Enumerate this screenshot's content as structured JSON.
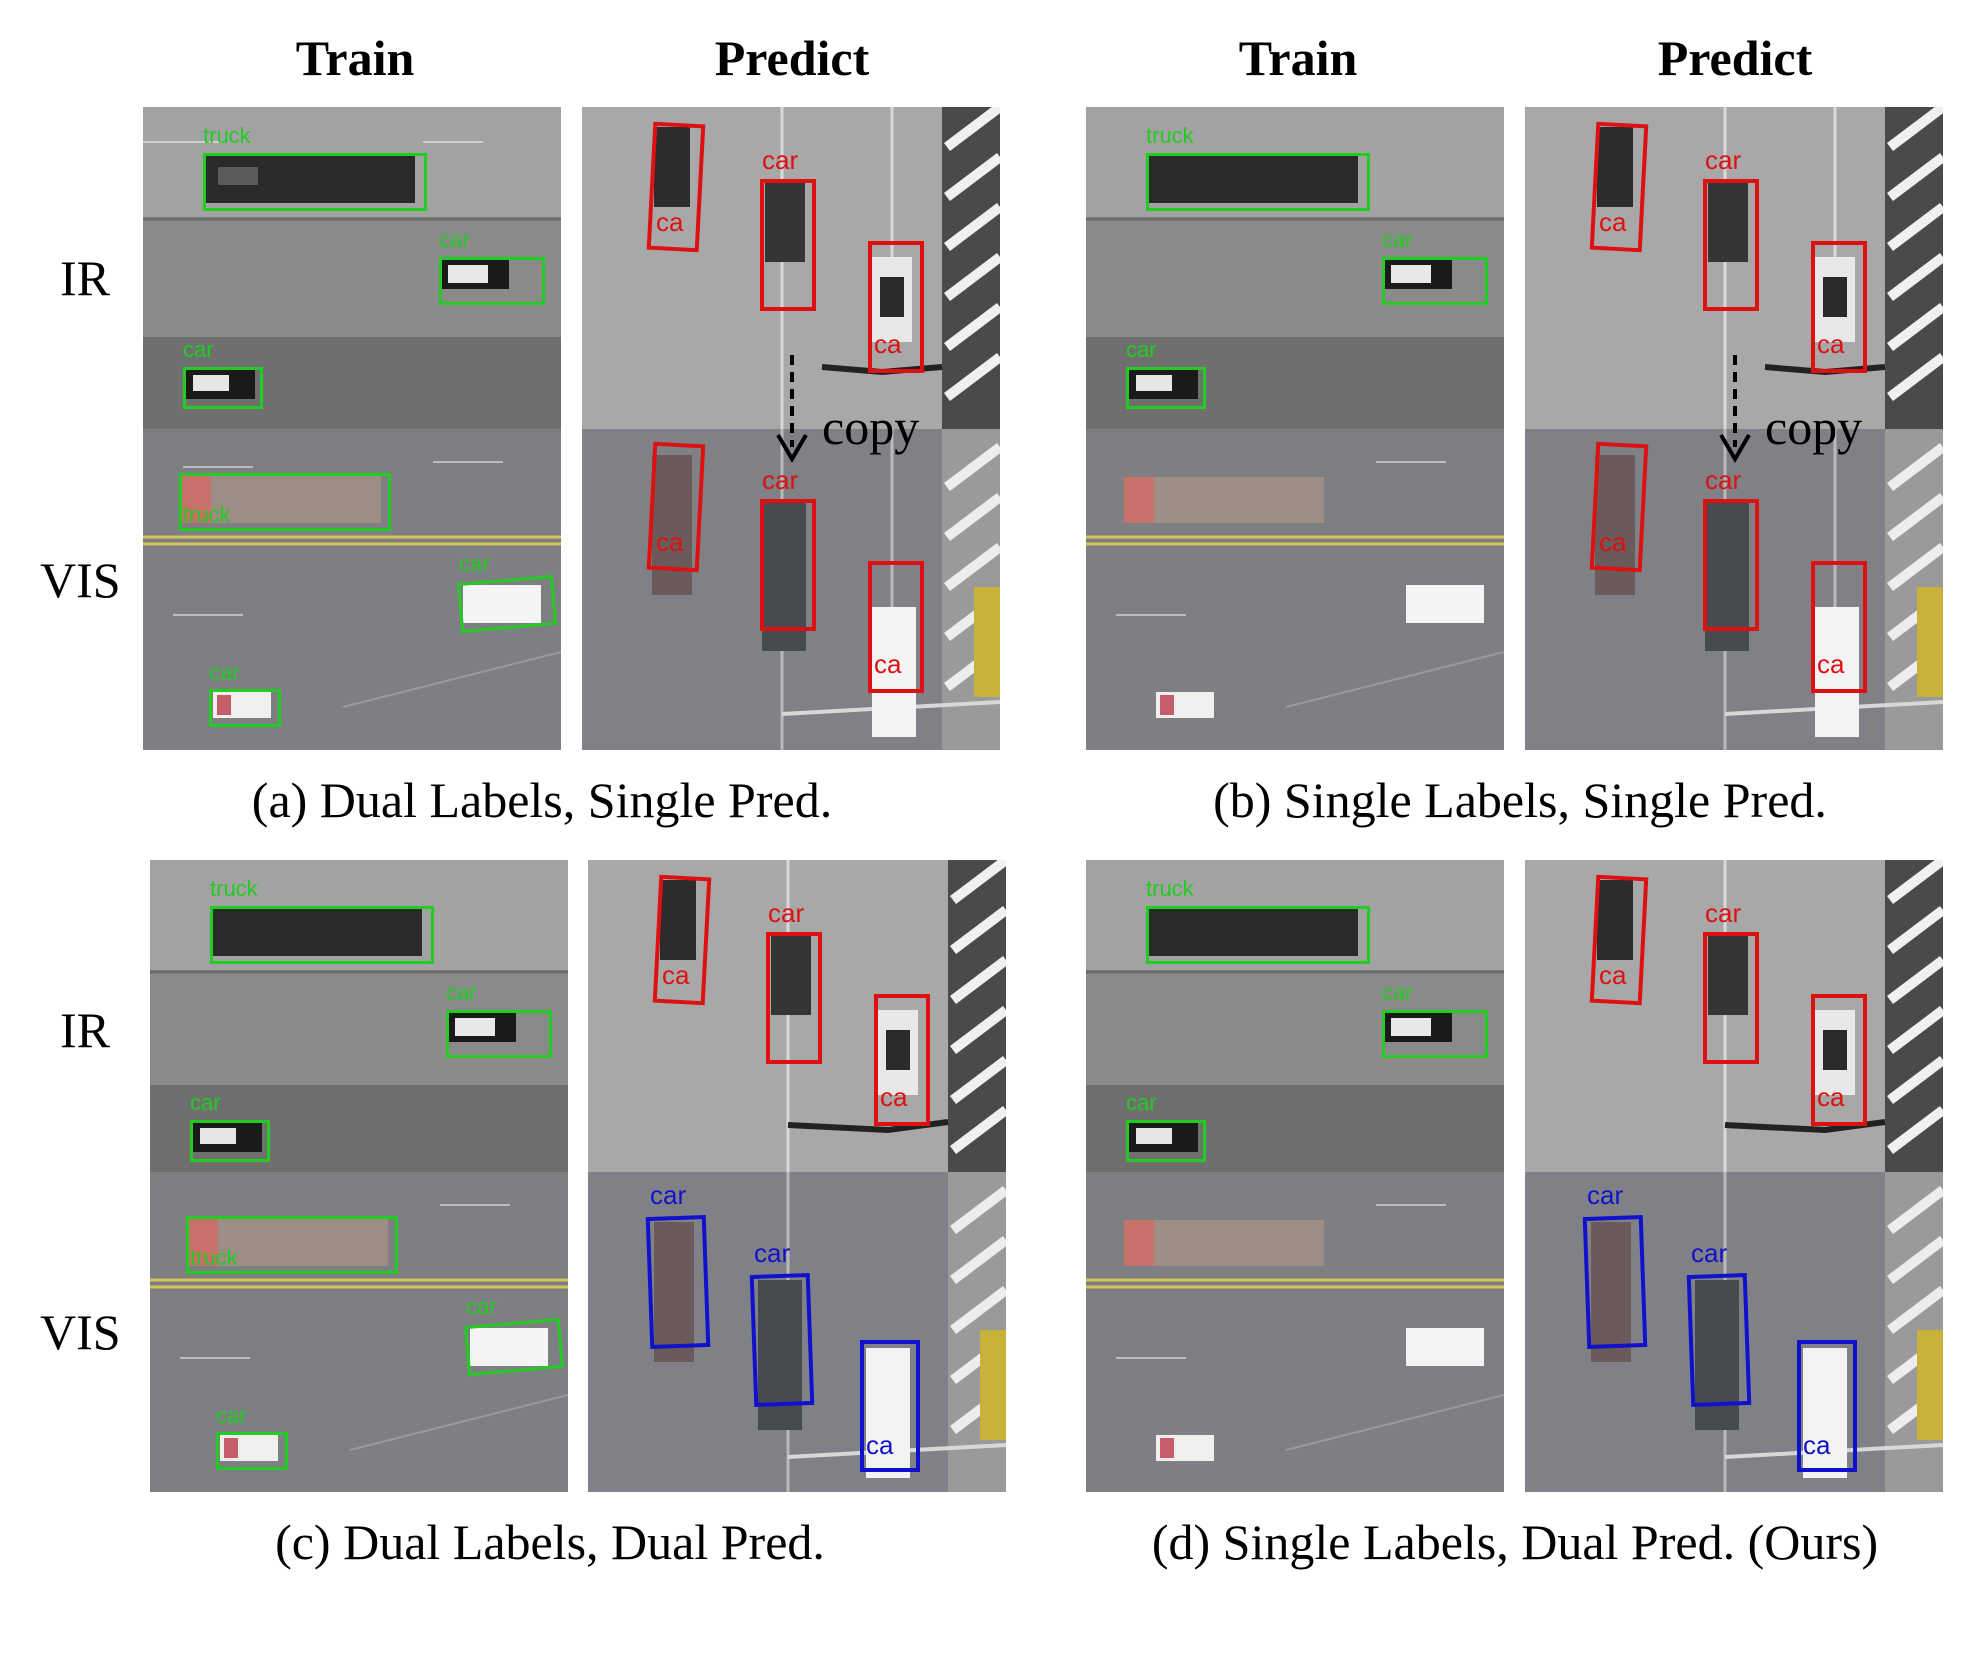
{
  "headers": {
    "train": "Train",
    "predict": "Predict"
  },
  "rows": {
    "ir": "IR",
    "vis": "VIS"
  },
  "captions": {
    "a": "(a) Dual Labels, Single Pred.",
    "b": "(b) Single Labels, Single Pred.",
    "c": "(c) Dual Labels, Dual Pred.",
    "d": "(d) Single Labels, Dual Pred. (Ours)"
  },
  "copy_label": "copy",
  "detection_labels": {
    "truck": "truck",
    "car": "car",
    "car_cut": "ca"
  },
  "colors": {
    "train_box": "#22cc22",
    "pred_ir_box": "#dd1111",
    "pred_vis_copied": "#dd1111",
    "pred_vis_dual": "#1111cc"
  }
}
